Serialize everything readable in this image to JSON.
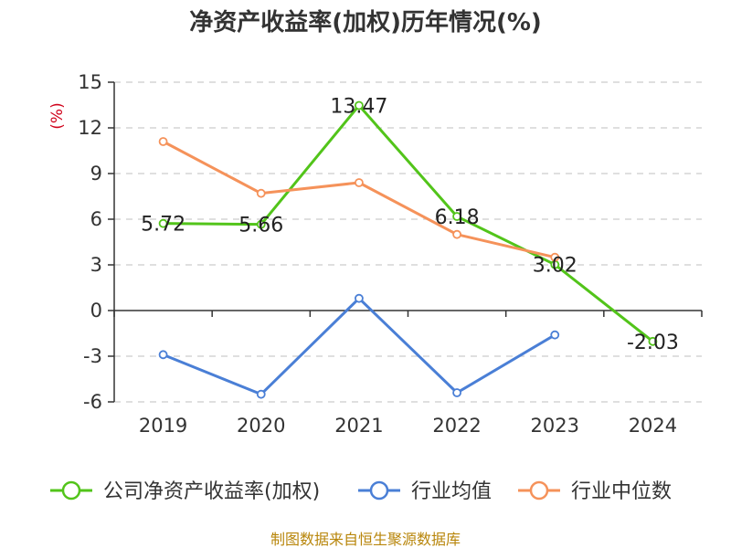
{
  "chart_data": {
    "type": "line",
    "title": "净资产收益率(加权)历年情况(%)",
    "ylabel": "(%)",
    "xlabel": "",
    "categories": [
      "2019",
      "2020",
      "2021",
      "2022",
      "2023",
      "2024"
    ],
    "ylim": [
      -6,
      15
    ],
    "yticks": [
      15,
      12,
      9,
      6,
      3,
      0,
      -3,
      -6
    ],
    "grid": true,
    "legend_position": "bottom",
    "series": [
      {
        "name": "公司净资产收益率(加权)",
        "color": "#52c41a",
        "values": [
          5.72,
          5.66,
          13.47,
          6.18,
          3.02,
          -2.03
        ],
        "labels": [
          "5.72",
          "5.66",
          "13.47",
          "6.18",
          "3.02",
          "-2.03"
        ]
      },
      {
        "name": "行业均值",
        "color": "#4a7fd6",
        "values": [
          -2.9,
          -5.5,
          0.8,
          -5.4,
          -1.6,
          null
        ]
      },
      {
        "name": "行业中位数",
        "color": "#f5925a",
        "values": [
          11.1,
          7.7,
          8.4,
          5.0,
          3.5,
          null
        ]
      }
    ]
  },
  "footer": {
    "source": "制图数据来自恒生聚源数据库"
  }
}
